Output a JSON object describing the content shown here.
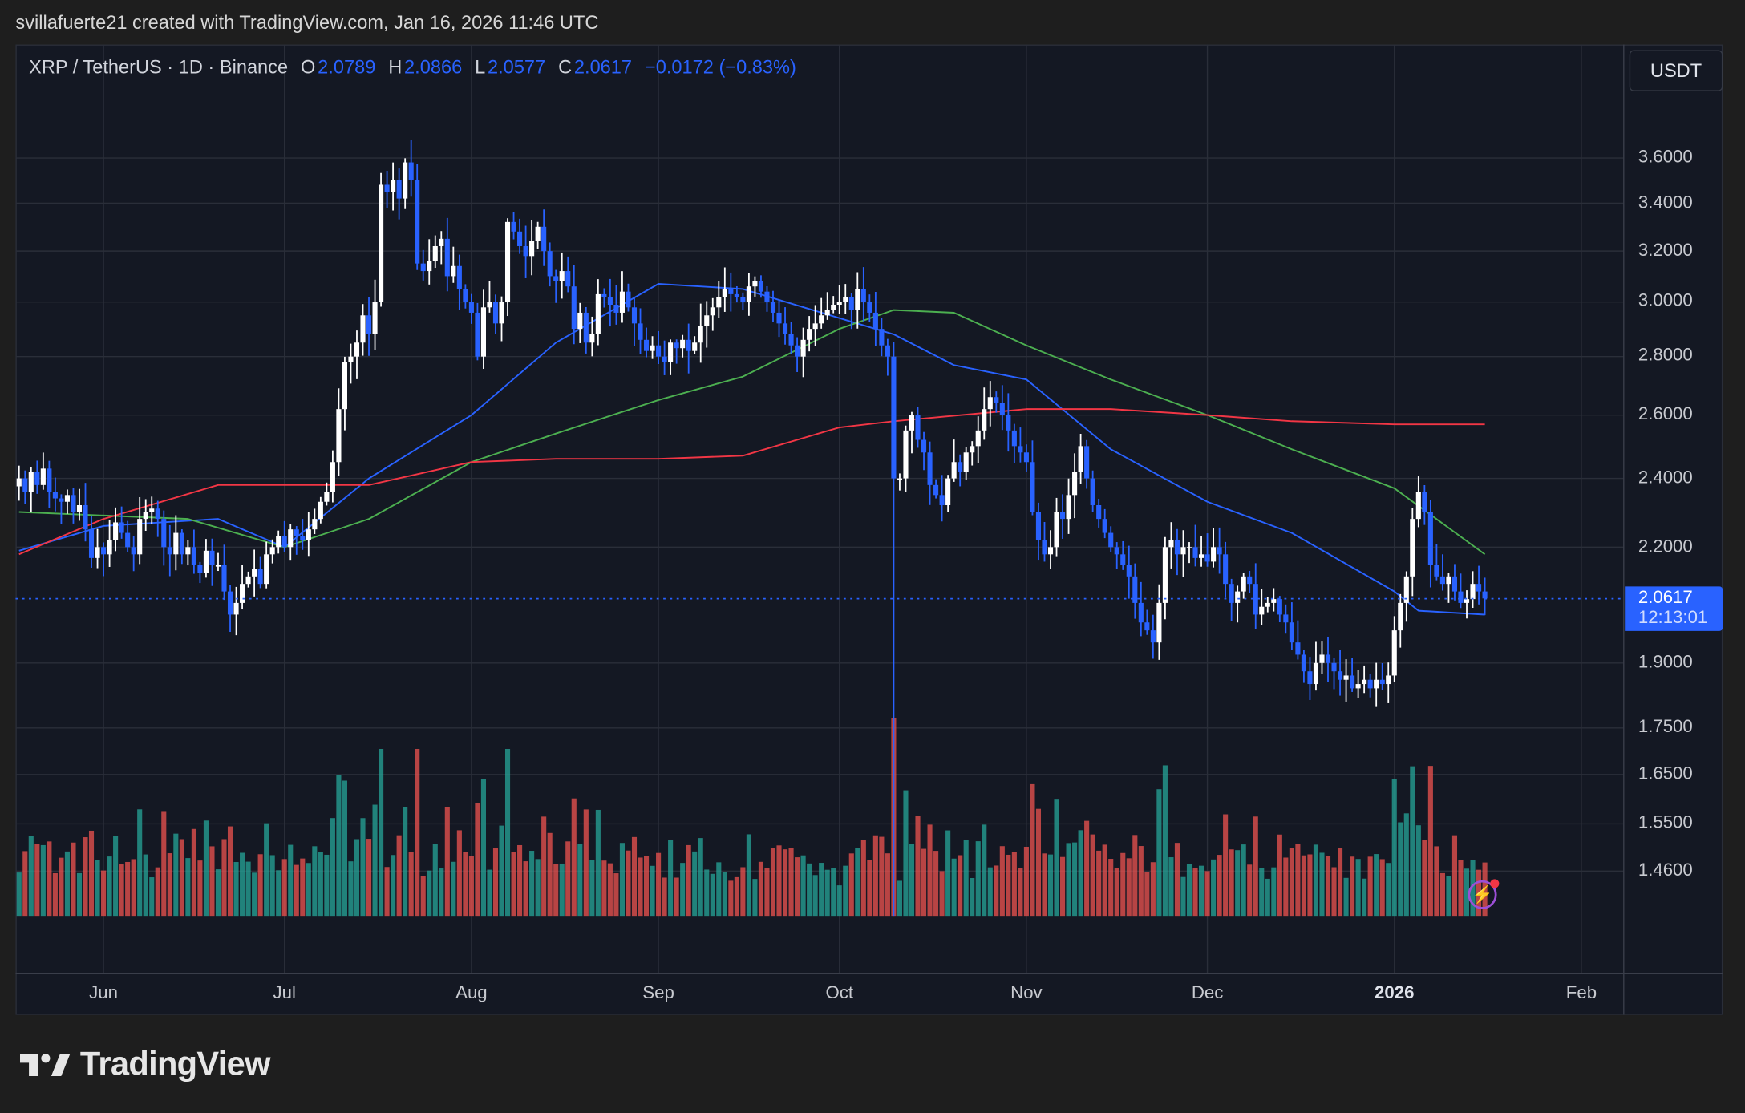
{
  "credit": "svillafuerte21 created with TradingView.com, Jan 16, 2026 11:46 UTC",
  "legend": {
    "symbol": "XRP / TetherUS · 1D · Binance",
    "o_label": "O",
    "o": "2.0789",
    "h_label": "H",
    "h": "2.0866",
    "l_label": "L",
    "l": "2.0577",
    "c_label": "C",
    "c": "2.0617",
    "change": "−0.0172 (−0.83%)"
  },
  "currency_button": "USDT",
  "last_price": {
    "value": "2.0617",
    "countdown": "12:13:01"
  },
  "brand": "TradingView",
  "icons": {
    "logo": "tradingview-logo-icon",
    "alert": "lightning-icon"
  },
  "colors": {
    "up": "#ffffff",
    "down": "#2962ff",
    "vol_up": "#26a69a",
    "vol_down": "#ef5350",
    "ma_blue": "#2962ff",
    "ma_green": "#4caf50",
    "ma_red": "#f23645",
    "background": "#141823"
  },
  "chart_data": {
    "type": "candlestick",
    "title": "XRP / TetherUS · 1D · Binance",
    "y_scale": "log",
    "ylim": [
      1.4,
      3.75
    ],
    "y_ticks": [
      "3.6000",
      "3.4000",
      "3.2000",
      "3.0000",
      "2.8000",
      "2.6000",
      "2.4000",
      "2.2000",
      "1.9000",
      "1.7500",
      "1.6500",
      "1.5500",
      "1.4600"
    ],
    "x_ticks": [
      {
        "label": "Jun",
        "date": "2025-06-01"
      },
      {
        "label": "Jul",
        "date": "2025-07-01"
      },
      {
        "label": "Aug",
        "date": "2025-08-01"
      },
      {
        "label": "Sep",
        "date": "2025-09-01"
      },
      {
        "label": "Oct",
        "date": "2025-10-01"
      },
      {
        "label": "Nov",
        "date": "2025-11-01"
      },
      {
        "label": "Dec",
        "date": "2025-12-01"
      },
      {
        "label": "2026",
        "date": "2026-01-01"
      },
      {
        "label": "Feb",
        "date": "2026-02-01"
      }
    ],
    "grid": true,
    "daily_closes": [
      {
        "month": "2025-05",
        "from_day": 18,
        "close": [
          2.4,
          2.36,
          2.42,
          2.38,
          2.43,
          2.36,
          2.34,
          2.33,
          2.35,
          2.3,
          2.32,
          2.25,
          2.17,
          2.2
        ]
      },
      {
        "month": "2025-06",
        "from_day": 1,
        "close": [
          2.18,
          2.22,
          2.27,
          2.24,
          2.2,
          2.18,
          2.28,
          2.3,
          2.31,
          2.28,
          2.2,
          2.18,
          2.24,
          2.18,
          2.2,
          2.15,
          2.13,
          2.19,
          2.15,
          2.15,
          2.08,
          2.02,
          2.05,
          2.1,
          2.12,
          2.14,
          2.1,
          2.18,
          2.2,
          2.23
        ]
      },
      {
        "month": "2025-07",
        "from_day": 1,
        "close": [
          2.2,
          2.25,
          2.23,
          2.22,
          2.25,
          2.28,
          2.33,
          2.36,
          2.45,
          2.62,
          2.78,
          2.8,
          2.85,
          2.95,
          2.88,
          3.0,
          3.48,
          3.45,
          3.5,
          3.42,
          3.58,
          3.5,
          3.15,
          3.12,
          3.16,
          3.22,
          3.25,
          3.1,
          3.14,
          3.05,
          3.0
        ]
      },
      {
        "month": "2025-08",
        "from_day": 1,
        "close": [
          2.96,
          2.8,
          2.98,
          3.0,
          2.92,
          3.0,
          3.32,
          3.28,
          3.22,
          3.18,
          3.24,
          3.3,
          3.2,
          3.1,
          3.08,
          3.12,
          3.06,
          2.9,
          2.96,
          2.85,
          2.88,
          3.03,
          3.02,
          2.99,
          2.96,
          3.04,
          2.98,
          2.92,
          2.86,
          2.82,
          2.84
        ]
      },
      {
        "month": "2025-09",
        "from_day": 1,
        "close": [
          2.8,
          2.78,
          2.85,
          2.83,
          2.86,
          2.82,
          2.85,
          2.91,
          2.95,
          2.98,
          3.02,
          3.05,
          3.03,
          3.02,
          3.0,
          3.06,
          3.08,
          3.04,
          3.0,
          2.96,
          2.92,
          2.88,
          2.84,
          2.8,
          2.86,
          2.9,
          2.92,
          2.95,
          2.97,
          2.99
        ]
      },
      {
        "month": "2025-10",
        "from_day": 1,
        "close": [
          3.0,
          3.02,
          2.97,
          3.05,
          3.0,
          2.96,
          2.9,
          2.84,
          2.8,
          2.4,
          2.4,
          2.55,
          2.6,
          2.52,
          2.48,
          2.38,
          2.35,
          2.32,
          2.4,
          2.45,
          2.42,
          2.48,
          2.5,
          2.55,
          2.62,
          2.66,
          2.64,
          2.6,
          2.55,
          2.5,
          2.48
        ]
      },
      {
        "month": "2025-11",
        "from_day": 1,
        "close": [
          2.45,
          2.3,
          2.22,
          2.18,
          2.2,
          2.3,
          2.28,
          2.35,
          2.42,
          2.5,
          2.4,
          2.32,
          2.28,
          2.24,
          2.2,
          2.18,
          2.15,
          2.12,
          2.05,
          2.0,
          1.98,
          1.95,
          2.05,
          2.2,
          2.22,
          2.18,
          2.2,
          2.2,
          2.17,
          2.18
        ]
      },
      {
        "month": "2025-12",
        "from_day": 1,
        "close": [
          2.16,
          2.2,
          2.18,
          2.1,
          2.05,
          2.08,
          2.12,
          2.1,
          2.02,
          2.04,
          2.05,
          2.06,
          2.02,
          2.0,
          1.95,
          1.92,
          1.88,
          1.85,
          1.9,
          1.92,
          1.9,
          1.88,
          1.86,
          1.87,
          1.84,
          1.85,
          1.86,
          1.84,
          1.86,
          1.85,
          1.87
        ]
      },
      {
        "month": "2026-01",
        "from_day": 1,
        "close": [
          1.98,
          2.05,
          2.12,
          2.28,
          2.36,
          2.3,
          2.15,
          2.12,
          2.1,
          2.12,
          2.08,
          2.05,
          2.06,
          2.1,
          2.08,
          2.0617
        ]
      }
    ],
    "oct_10_low": 1.37,
    "moving_averages": [
      {
        "color": "#2962ff",
        "points": [
          [
            "2025-05-18",
            2.19
          ],
          [
            "2025-06-01",
            2.26
          ],
          [
            "2025-06-20",
            2.28
          ],
          [
            "2025-07-01",
            2.2
          ],
          [
            "2025-07-15",
            2.4
          ],
          [
            "2025-08-01",
            2.6
          ],
          [
            "2025-08-15",
            2.85
          ],
          [
            "2025-09-01",
            3.07
          ],
          [
            "2025-09-15",
            3.05
          ],
          [
            "2025-10-01",
            2.94
          ],
          [
            "2025-10-10",
            2.88
          ],
          [
            "2025-10-20",
            2.77
          ],
          [
            "2025-11-01",
            2.72
          ],
          [
            "2025-11-15",
            2.49
          ],
          [
            "2025-12-01",
            2.33
          ],
          [
            "2025-12-15",
            2.24
          ],
          [
            "2026-01-01",
            2.08
          ],
          [
            "2026-01-05",
            2.03
          ],
          [
            "2026-01-16",
            2.02
          ]
        ]
      },
      {
        "color": "#4caf50",
        "points": [
          [
            "2025-05-18",
            2.3
          ],
          [
            "2025-06-15",
            2.28
          ],
          [
            "2025-07-01",
            2.2
          ],
          [
            "2025-07-15",
            2.28
          ],
          [
            "2025-08-01",
            2.45
          ],
          [
            "2025-08-15",
            2.54
          ],
          [
            "2025-09-01",
            2.65
          ],
          [
            "2025-09-15",
            2.73
          ],
          [
            "2025-10-01",
            2.9
          ],
          [
            "2025-10-10",
            2.97
          ],
          [
            "2025-10-20",
            2.96
          ],
          [
            "2025-11-01",
            2.84
          ],
          [
            "2025-11-15",
            2.72
          ],
          [
            "2025-12-01",
            2.6
          ],
          [
            "2025-12-15",
            2.49
          ],
          [
            "2026-01-01",
            2.37
          ],
          [
            "2026-01-16",
            2.18
          ]
        ]
      },
      {
        "color": "#f23645",
        "points": [
          [
            "2025-05-18",
            2.18
          ],
          [
            "2025-06-01",
            2.28
          ],
          [
            "2025-06-20",
            2.38
          ],
          [
            "2025-07-15",
            2.38
          ],
          [
            "2025-08-01",
            2.45
          ],
          [
            "2025-08-15",
            2.46
          ],
          [
            "2025-09-01",
            2.46
          ],
          [
            "2025-09-15",
            2.47
          ],
          [
            "2025-10-01",
            2.56
          ],
          [
            "2025-10-10",
            2.58
          ],
          [
            "2025-11-01",
            2.62
          ],
          [
            "2025-11-15",
            2.62
          ],
          [
            "2025-12-01",
            2.6
          ],
          [
            "2025-12-15",
            2.58
          ],
          [
            "2026-01-01",
            2.57
          ],
          [
            "2026-01-16",
            2.57
          ]
        ]
      }
    ]
  }
}
